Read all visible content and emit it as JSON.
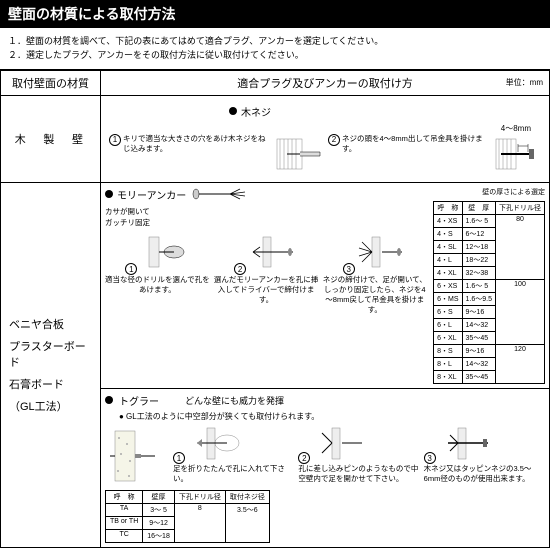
{
  "header": {
    "title": "壁面の材質による取付方法"
  },
  "instructions": {
    "line1": "１．壁面の材質を調べて、下記の表にあてはめて適合プラグ、アンカーを選定してください。",
    "line2": "２．選定したプラグ、アンカーをその取付方法に従い取付けてください。"
  },
  "table_headers": {
    "left": "取付壁面の材質",
    "right": "適合プラグ及びアンカーの取付け方",
    "unit": "単位：mm"
  },
  "wood": {
    "material": "木　製　壁",
    "product": "木ネジ",
    "clearance": "4～8mm",
    "step1_num": "1",
    "step1_text": "キリで適当な大きさの穴をあけ木ネジをねじ込みます。",
    "step2_num": "2",
    "step2_text": "ネジの頭を4～8mm出して吊金具を掛けます。"
  },
  "board": {
    "material_l1": "ベニヤ合板",
    "material_l2": "プラスターボード",
    "material_l3": "石膏ボード",
    "material_l4": "（GL工法）",
    "molly": {
      "product": "モリーアンカー",
      "subtitle1": "カサが開いて",
      "subtitle2": "ガッチリ固定",
      "spec_caption": "壁の厚さによる選定",
      "spec_headers": {
        "c1": "呼　称",
        "c2": "壁　厚",
        "c3": "下孔ドリル径"
      },
      "rows": [
        {
          "name": "4・XS",
          "thick": "1.6～ 5",
          "drill": "80"
        },
        {
          "name": "4・S",
          "thick": "6～12",
          "drill": ""
        },
        {
          "name": "4・SL",
          "thick": "12～18",
          "drill": ""
        },
        {
          "name": "4・L",
          "thick": "18～22",
          "drill": ""
        },
        {
          "name": "4・XL",
          "thick": "32～38",
          "drill": ""
        },
        {
          "name": "6・XS",
          "thick": "1.6～ 5",
          "drill": "100"
        },
        {
          "name": "6・MS",
          "thick": "1.6～9.5",
          "drill": ""
        },
        {
          "name": "6・S",
          "thick": "9～16",
          "drill": ""
        },
        {
          "name": "6・L",
          "thick": "14～32",
          "drill": ""
        },
        {
          "name": "6・XL",
          "thick": "35～45",
          "drill": ""
        },
        {
          "name": "8・S",
          "thick": "9～16",
          "drill": "120"
        },
        {
          "name": "8・L",
          "thick": "14～32",
          "drill": ""
        },
        {
          "name": "8・XL",
          "thick": "35～45",
          "drill": ""
        }
      ],
      "s1": "1",
      "s1_text": "適当な径のドリルを選んで孔をあけます。",
      "s2": "2",
      "s2_text": "選んだモリーアンカーを孔に挿入してドライバーで締付けます。",
      "s3": "3",
      "s3_text": "ネジの締付けで、足が開いて、しっかり固定したら、ネジを4～8mm戻して吊金具を掛けます。"
    },
    "toggler": {
      "product": "トグラー",
      "tagline": "どんな壁にも威力を発揮",
      "note": "● GL工法のように中空部分が狭くても取付けられます。",
      "spec_headers": {
        "c1": "呼　称",
        "c2": "壁厚",
        "c3": "下孔ドリル径",
        "c4": "取付ネジ径"
      },
      "rows": [
        {
          "name": "TA",
          "thick": "3～ 5",
          "drill": "8",
          "screw": "3.5～6"
        },
        {
          "name": "TB or TH",
          "thick": "9～12",
          "drill": "",
          "screw": ""
        },
        {
          "name": "TC",
          "thick": "16～18",
          "drill": "",
          "screw": ""
        }
      ],
      "s1": "1",
      "s1_text": "足を折りたたんで孔に入れて下さい。",
      "s2": "2",
      "s2_text": "孔に差し込みピンのようなもので中空壁内で足を開かせて下さい。",
      "s3": "3",
      "s3_text": "木ネジ又はタッピンネジの3.5～6mm径のものが使用出来ます。"
    }
  }
}
